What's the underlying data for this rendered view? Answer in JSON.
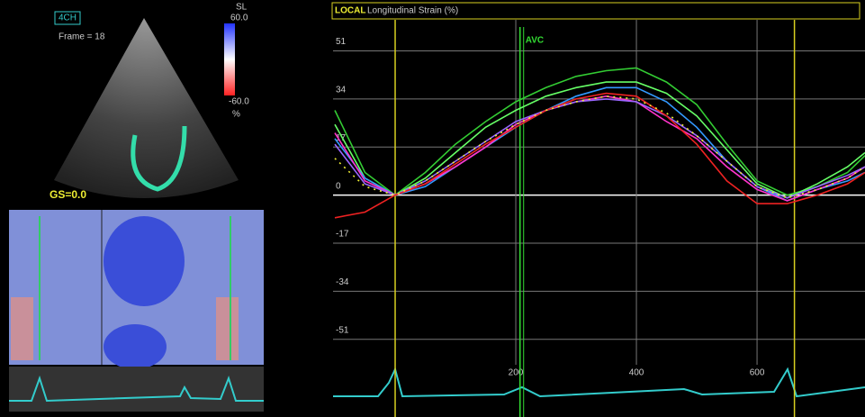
{
  "left_panel": {
    "view": "4CH",
    "frame": "Frame = 18",
    "scale_name": "SL",
    "scale_max": "60.0",
    "scale_min": "-60.0",
    "scale_unit": "%",
    "global_strain": "GS=0.0"
  },
  "chart_data": {
    "type": "line",
    "label": "LOCAL",
    "title": "Longitudinal Strain (%)",
    "annotation": {
      "text": "AVC",
      "x": 207,
      "color": "#33dd33"
    },
    "frame_markers": [
      0,
      662
    ],
    "frame_marker_color": "#d8d020",
    "xlim": [
      -103,
      779
    ],
    "xticks": [
      200,
      400,
      600
    ],
    "ylim": [
      -60,
      62
    ],
    "yticks": [
      -51,
      -34,
      -17,
      0,
      17,
      34,
      51
    ],
    "grid": true,
    "x": [
      -100,
      -50,
      0,
      50,
      100,
      150,
      200,
      250,
      300,
      350,
      400,
      450,
      500,
      550,
      600,
      650,
      700,
      750,
      779
    ],
    "series": [
      {
        "color": "#33cc33",
        "values": [
          30,
          8,
          0,
          8,
          18,
          26,
          33,
          38,
          42,
          44,
          45,
          40,
          32,
          18,
          5,
          0,
          3,
          8,
          14
        ]
      },
      {
        "color": "#66ff66",
        "values": [
          25,
          6,
          0,
          6,
          15,
          24,
          30,
          35,
          38,
          40,
          40,
          36,
          28,
          16,
          4,
          -1,
          4,
          10,
          15
        ]
      },
      {
        "color": "#3399ff",
        "values": [
          20,
          6,
          0,
          3,
          10,
          17,
          24,
          30,
          35,
          38,
          38,
          33,
          24,
          12,
          3,
          -2,
          2,
          5,
          8
        ]
      },
      {
        "color": "#ff33cc",
        "values": [
          22,
          5,
          0,
          4,
          10,
          17,
          25,
          30,
          33,
          35,
          33,
          26,
          20,
          10,
          2,
          -2,
          2,
          6,
          10
        ]
      },
      {
        "color": "#9966ff",
        "values": [
          18,
          4,
          0,
          5,
          12,
          19,
          26,
          30,
          33,
          34,
          33,
          28,
          21,
          12,
          3,
          -1,
          3,
          7,
          10
        ]
      },
      {
        "color": "#ee2222",
        "values": [
          -8,
          -6,
          0,
          4,
          11,
          18,
          24,
          30,
          34,
          36,
          35,
          28,
          18,
          5,
          -3,
          -3,
          0,
          4,
          8
        ]
      },
      {
        "color": "#eeee33",
        "dotted": true,
        "values": [
          13,
          3,
          0,
          5,
          12,
          19,
          25,
          30,
          33,
          35,
          34,
          29,
          21,
          12,
          3,
          -1,
          2,
          6,
          10
        ]
      }
    ]
  }
}
